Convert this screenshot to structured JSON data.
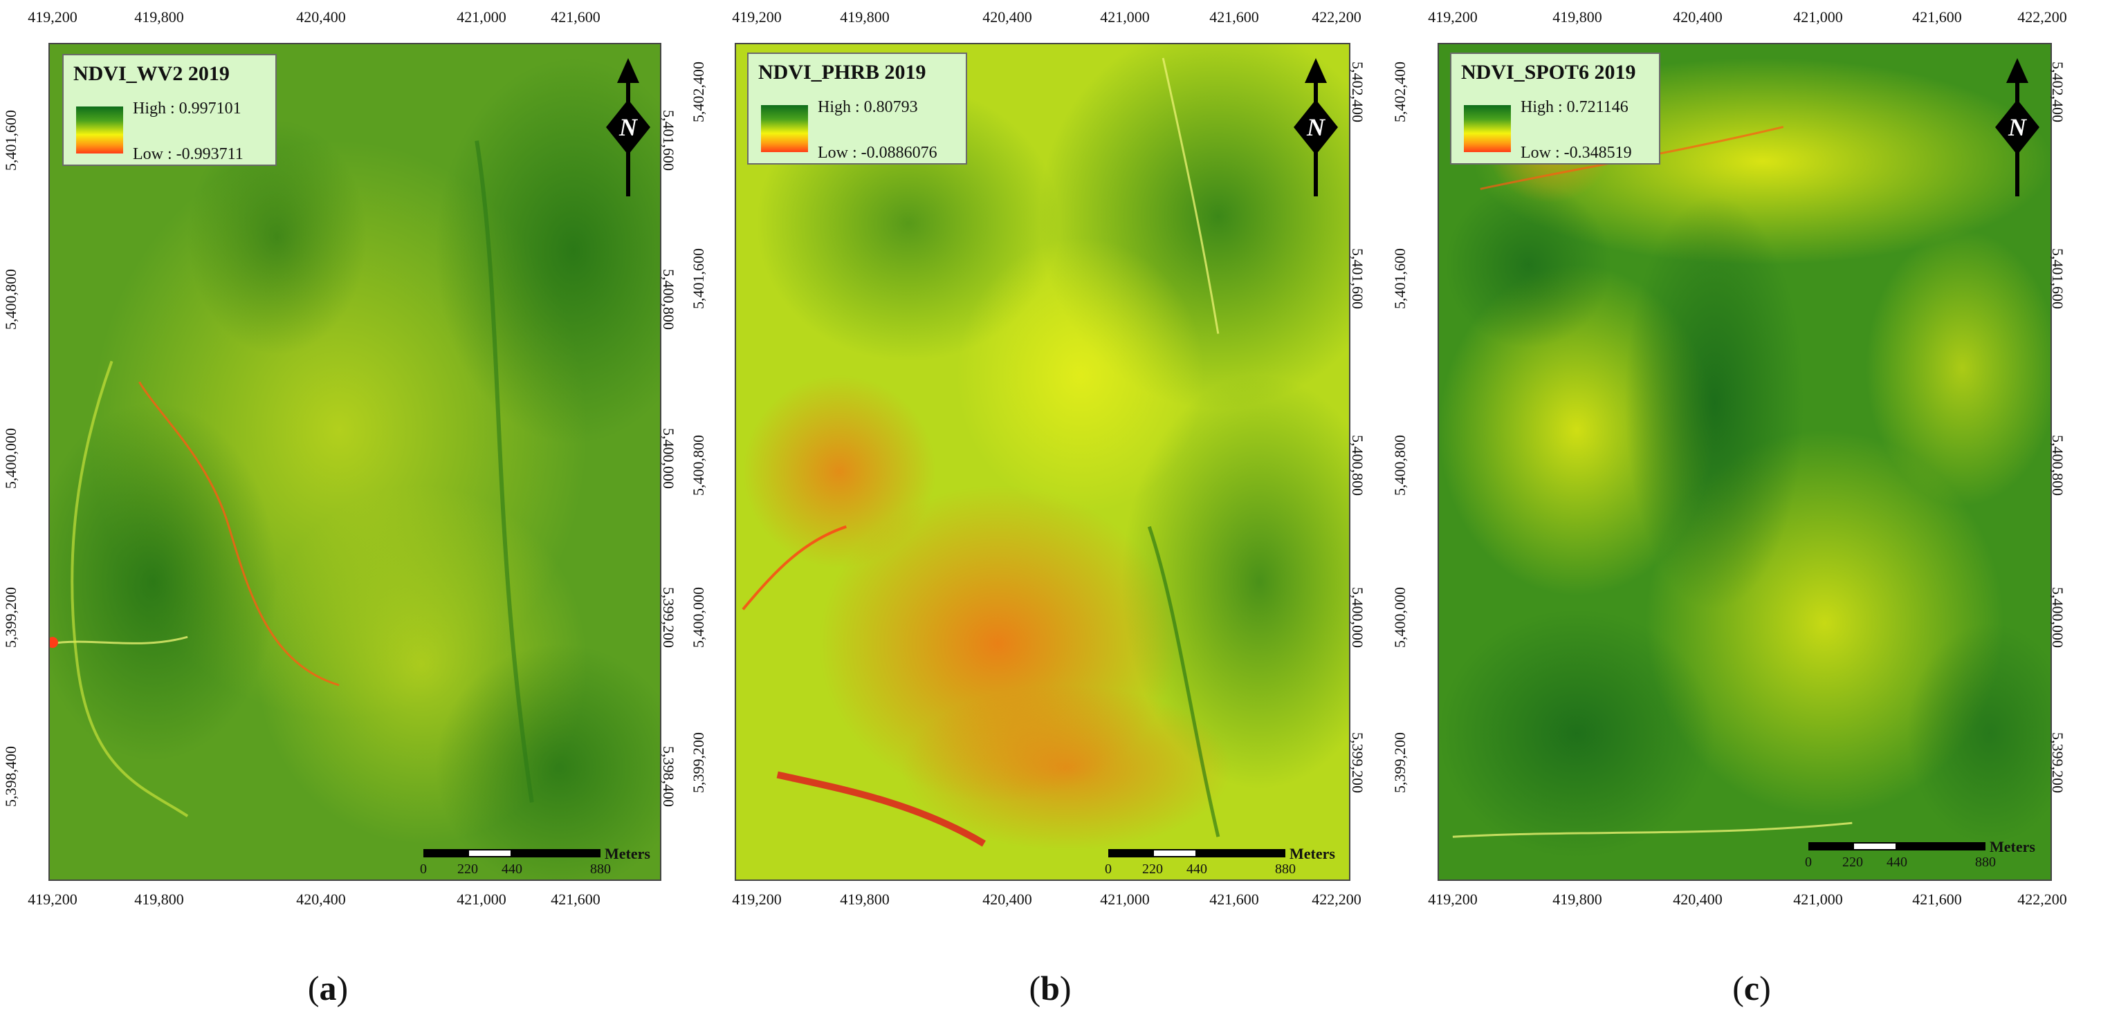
{
  "panels": [
    {
      "id": "a",
      "legend": {
        "title": "NDVI_WV2 2019",
        "high": "High : 0.997101",
        "low": "Low : -0.993711"
      },
      "x_ticks": [
        "419,200",
        "419,800",
        "420,400",
        "421,000",
        "421,600"
      ],
      "y_ticks": [
        "5,401,600",
        "5,400,800",
        "5,400,000",
        "5,399,200",
        "5,398,400"
      ],
      "y_ticks_right": [
        "5,401,600",
        "5,400,800",
        "5,400,000",
        "5,399,200",
        "5,398,400"
      ],
      "scalebar": {
        "labels": [
          "0",
          "220",
          "440",
          "880"
        ],
        "unit": "Meters"
      },
      "caption_letter": "a",
      "colors": {
        "dominant": "#4e9a1e",
        "stress": "#ff3d17"
      }
    },
    {
      "id": "b",
      "legend": {
        "title": "NDVI_PHRB 2019",
        "high": "High : 0.80793",
        "low": "Low : -0.0886076"
      },
      "x_ticks": [
        "419,200",
        "419,800",
        "420,400",
        "421,000",
        "421,600",
        "422,200"
      ],
      "y_ticks": [
        "5,402,400",
        "5,401,600",
        "5,400,800",
        "5,400,000",
        "5,399,200"
      ],
      "y_ticks_right": [
        "5,402,400",
        "5,401,600",
        "5,400,800",
        "5,400,000",
        "5,399,200"
      ],
      "scalebar": {
        "labels": [
          "0",
          "220",
          "440",
          "880"
        ],
        "unit": "Meters"
      },
      "caption_letter": "b",
      "colors": {
        "dominant": "#c5e21a",
        "stress": "#ff3d17"
      }
    },
    {
      "id": "c",
      "legend": {
        "title": "NDVI_SPOT6 2019",
        "high": "High : 0.721146",
        "low": "Low : -0.348519"
      },
      "x_ticks": [
        "419,200",
        "419,800",
        "420,400",
        "421,000",
        "421,600",
        "422,200"
      ],
      "y_ticks": [
        "5,402,400",
        "5,401,600",
        "5,400,800",
        "5,400,000",
        "5,399,200"
      ],
      "y_ticks_right": [
        "5,402,400",
        "5,401,600",
        "5,400,800",
        "5,400,000",
        "5,399,200"
      ],
      "scalebar": {
        "labels": [
          "0",
          "220",
          "440",
          "880"
        ],
        "unit": "Meters"
      },
      "caption_letter": "c",
      "colors": {
        "dominant": "#2f8a1a",
        "stress": "#ff6a12"
      }
    }
  ],
  "north_arrow": {
    "label": "N",
    "icon": "north-arrow-icon"
  }
}
